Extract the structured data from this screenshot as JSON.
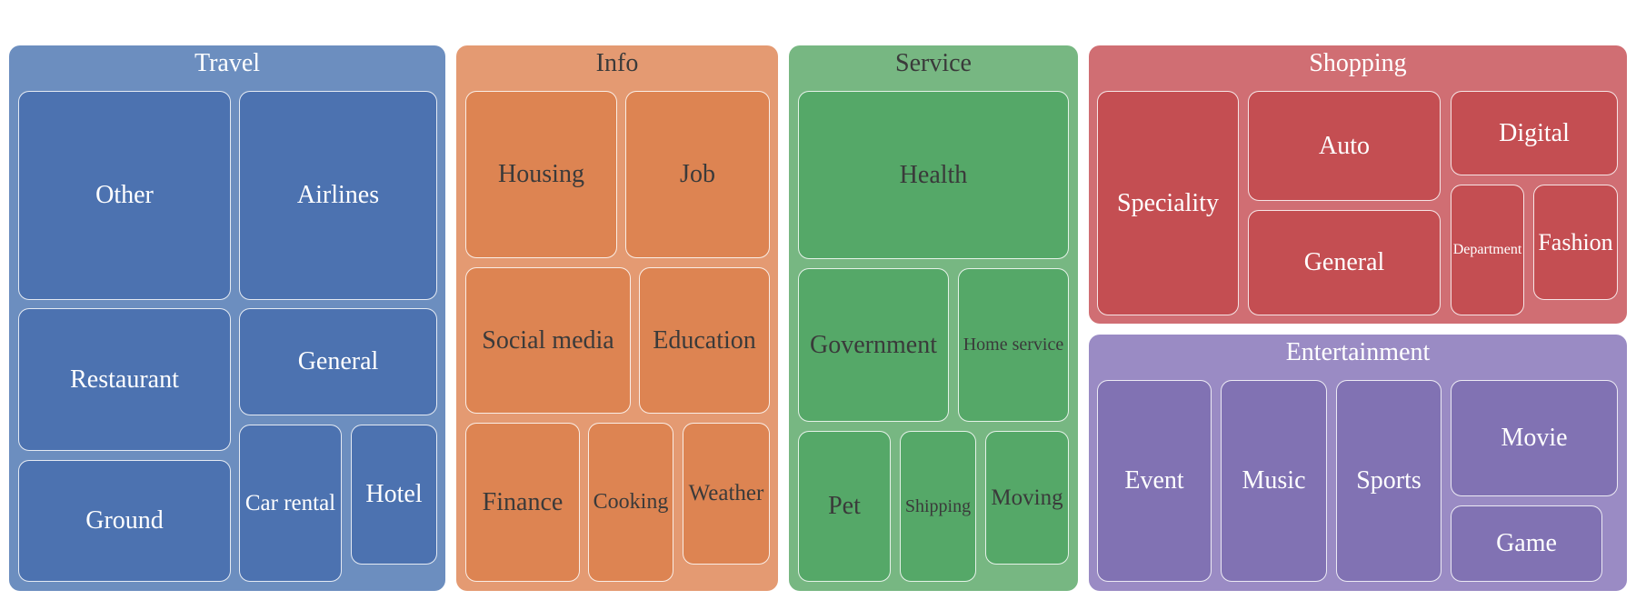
{
  "chart_data": {
    "type": "treemap",
    "groups": [
      {
        "name": "Travel",
        "color": "#6c8ebf",
        "tileColor": "#4c72b0",
        "textColor": "#ffffff",
        "items": [
          "Other",
          "Airlines",
          "Restaurant",
          "General",
          "Ground",
          "Car rental",
          "Hotel"
        ]
      },
      {
        "name": "Info",
        "color": "#e49a72",
        "tileColor": "#dd8452",
        "textColor": "#3a3a3a",
        "items": [
          "Housing",
          "Job",
          "Social media",
          "Education",
          "Finance",
          "Cooking",
          "Weather"
        ]
      },
      {
        "name": "Service",
        "color": "#77b782",
        "tileColor": "#55a868",
        "textColor": "#3a3a3a",
        "items": [
          "Health",
          "Government",
          "Home service",
          "Pet",
          "Shipping",
          "Moving"
        ]
      },
      {
        "name": "Shopping",
        "color": "#d06e73",
        "tileColor": "#c44e52",
        "textColor": "#ffffff",
        "items": [
          "Speciality",
          "Auto",
          "General",
          "Digital",
          "Department",
          "Fashion"
        ]
      },
      {
        "name": "Entertainment",
        "color": "#9a8bc4",
        "tileColor": "#8172b3",
        "textColor": "#ffffff",
        "items": [
          "Event",
          "Music",
          "Sports",
          "Movie",
          "Game"
        ]
      }
    ]
  }
}
